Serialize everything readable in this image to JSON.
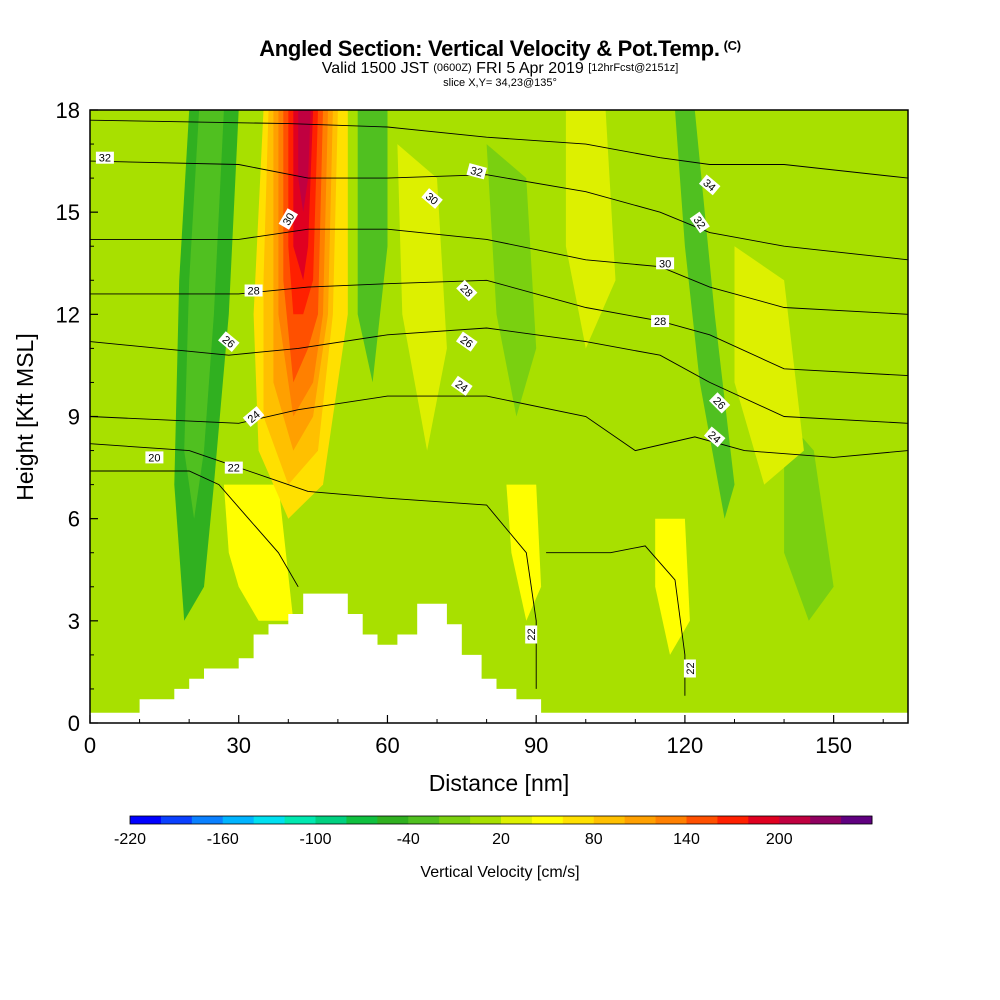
{
  "header": {
    "title": "Angled Section: Vertical Velocity & Pot.Temp.",
    "title_unit": "(C)",
    "valid_main": "Valid 1500 JST",
    "valid_z": "(0600Z)",
    "valid_date": "FRI 5 Apr 2019",
    "forecast": "[12hrFcst@2151z]",
    "slice": "slice X,Y= 34,23@135°"
  },
  "chart_data": {
    "type": "heatmap",
    "title": "Angled Section: Vertical Velocity & Pot.Temp. (C)",
    "xlabel": "Distance [nm]",
    "ylabel": "Height [Kft MSL]",
    "xlim": [
      0,
      165
    ],
    "ylim": [
      0,
      18
    ],
    "x_ticks": [
      0,
      30,
      60,
      90,
      120,
      150
    ],
    "y_ticks": [
      0,
      3,
      6,
      9,
      12,
      15,
      18
    ],
    "colorbar": {
      "label": "Vertical Velocity [cm/s]",
      "ticks": [
        -220,
        -160,
        -100,
        -40,
        20,
        80,
        140,
        200
      ],
      "levels": [
        -220,
        -200,
        -180,
        -160,
        -140,
        -120,
        -100,
        -80,
        -60,
        -40,
        -20,
        0,
        20,
        40,
        60,
        80,
        100,
        120,
        140,
        160,
        180,
        200,
        220,
        240
      ],
      "colors": [
        "#0000ff",
        "#0a40ff",
        "#0a80ff",
        "#00b4ff",
        "#00e0f0",
        "#00e8b0",
        "#00d080",
        "#10c040",
        "#30b020",
        "#50c020",
        "#7ad010",
        "#a8e000",
        "#ddf000",
        "#ffff00",
        "#ffe000",
        "#ffc000",
        "#ffa000",
        "#ff8000",
        "#ff5000",
        "#ff2000",
        "#e00020",
        "#c00040",
        "#900060",
        "#600080"
      ]
    },
    "terrain": [
      [
        0,
        0.3
      ],
      [
        10,
        0.3
      ],
      [
        10,
        0.7
      ],
      [
        17,
        0.7
      ],
      [
        17,
        1.0
      ],
      [
        20,
        1.0
      ],
      [
        20,
        1.3
      ],
      [
        23,
        1.3
      ],
      [
        23,
        1.6
      ],
      [
        30,
        1.6
      ],
      [
        30,
        1.9
      ],
      [
        33,
        1.9
      ],
      [
        33,
        2.6
      ],
      [
        36,
        2.6
      ],
      [
        36,
        2.9
      ],
      [
        40,
        2.9
      ],
      [
        40,
        3.2
      ],
      [
        43,
        3.2
      ],
      [
        43,
        3.8
      ],
      [
        52,
        3.8
      ],
      [
        52,
        3.2
      ],
      [
        55,
        3.2
      ],
      [
        55,
        2.6
      ],
      [
        58,
        2.6
      ],
      [
        58,
        2.3
      ],
      [
        62,
        2.3
      ],
      [
        62,
        2.6
      ],
      [
        66,
        2.6
      ],
      [
        66,
        3.5
      ],
      [
        72,
        3.5
      ],
      [
        72,
        2.9
      ],
      [
        75,
        2.9
      ],
      [
        75,
        2.0
      ],
      [
        79,
        2.0
      ],
      [
        79,
        1.3
      ],
      [
        82,
        1.3
      ],
      [
        82,
        1.0
      ],
      [
        86,
        1.0
      ],
      [
        86,
        0.7
      ],
      [
        91,
        0.7
      ],
      [
        91,
        0.3
      ],
      [
        165,
        0.3
      ]
    ],
    "bands": [
      {
        "value": -60,
        "points": [
          [
            20,
            18
          ],
          [
            30,
            18
          ],
          [
            28,
            12
          ],
          [
            25,
            7
          ],
          [
            23,
            4
          ],
          [
            19,
            3
          ],
          [
            17,
            7
          ],
          [
            18,
            13
          ]
        ]
      },
      {
        "value": -40,
        "points": [
          [
            22,
            18
          ],
          [
            27,
            18
          ],
          [
            25,
            12
          ],
          [
            23,
            8
          ],
          [
            21,
            6
          ],
          [
            19,
            8
          ],
          [
            20,
            13
          ]
        ]
      },
      {
        "value": -40,
        "points": [
          [
            54,
            18
          ],
          [
            60,
            18
          ],
          [
            60,
            14
          ],
          [
            57,
            10
          ],
          [
            54,
            12
          ]
        ]
      },
      {
        "value": -20,
        "points": [
          [
            80,
            17
          ],
          [
            88,
            16
          ],
          [
            90,
            11
          ],
          [
            86,
            9
          ],
          [
            82,
            12
          ]
        ]
      },
      {
        "value": -40,
        "points": [
          [
            118,
            18
          ],
          [
            122,
            18
          ],
          [
            126,
            12
          ],
          [
            130,
            7
          ],
          [
            128,
            6
          ],
          [
            123,
            10
          ],
          [
            120,
            14
          ]
        ]
      },
      {
        "value": -20,
        "points": [
          [
            140,
            9
          ],
          [
            146,
            8
          ],
          [
            150,
            4
          ],
          [
            145,
            3
          ],
          [
            140,
            5
          ]
        ]
      },
      {
        "value": 20,
        "points": [
          [
            62,
            17
          ],
          [
            70,
            16
          ],
          [
            72,
            11
          ],
          [
            68,
            8
          ],
          [
            63,
            12
          ]
        ]
      },
      {
        "value": 20,
        "points": [
          [
            96,
            18
          ],
          [
            104,
            18
          ],
          [
            106,
            13
          ],
          [
            100,
            11
          ],
          [
            96,
            14
          ]
        ]
      },
      {
        "value": 20,
        "points": [
          [
            130,
            14
          ],
          [
            140,
            13
          ],
          [
            144,
            8
          ],
          [
            136,
            7
          ],
          [
            130,
            10
          ]
        ]
      },
      {
        "value": 40,
        "points": [
          [
            84,
            7
          ],
          [
            90,
            7
          ],
          [
            91,
            4
          ],
          [
            88,
            3
          ],
          [
            85,
            5
          ]
        ]
      },
      {
        "value": 40,
        "points": [
          [
            114,
            6
          ],
          [
            120,
            6
          ],
          [
            121,
            3
          ],
          [
            117,
            2
          ],
          [
            114,
            4
          ]
        ]
      },
      {
        "value": 40,
        "points": [
          [
            27,
            7
          ],
          [
            38,
            7
          ],
          [
            41,
            3
          ],
          [
            34,
            3
          ],
          [
            30,
            4
          ],
          [
            28,
            5
          ]
        ]
      },
      {
        "value": 60,
        "points": [
          [
            35,
            18
          ],
          [
            52,
            18
          ],
          [
            52,
            12
          ],
          [
            47,
            7
          ],
          [
            40,
            6
          ],
          [
            34,
            8
          ],
          [
            33,
            12
          ]
        ]
      },
      {
        "value": 80,
        "points": [
          [
            36,
            18
          ],
          [
            50,
            18
          ],
          [
            49,
            12
          ],
          [
            46,
            8
          ],
          [
            40,
            7
          ],
          [
            35,
            9
          ],
          [
            35,
            13
          ]
        ]
      },
      {
        "value": 100,
        "points": [
          [
            37,
            18
          ],
          [
            49,
            18
          ],
          [
            48,
            12
          ],
          [
            45,
            9
          ],
          [
            41,
            8
          ],
          [
            37,
            10
          ],
          [
            37,
            13
          ]
        ]
      },
      {
        "value": 120,
        "points": [
          [
            38,
            18
          ],
          [
            48,
            18
          ],
          [
            47,
            12
          ],
          [
            45,
            10
          ],
          [
            41,
            9
          ],
          [
            38,
            12
          ]
        ]
      },
      {
        "value": 140,
        "points": [
          [
            39,
            18
          ],
          [
            47,
            18
          ],
          [
            46,
            12
          ],
          [
            44,
            11
          ],
          [
            41,
            10
          ],
          [
            39,
            13
          ]
        ]
      },
      {
        "value": 160,
        "points": [
          [
            40,
            18
          ],
          [
            46,
            18
          ],
          [
            45,
            13
          ],
          [
            43,
            12
          ],
          [
            41,
            12
          ],
          [
            40,
            14
          ]
        ]
      },
      {
        "value": 180,
        "points": [
          [
            41,
            18
          ],
          [
            45,
            18
          ],
          [
            44,
            14
          ],
          [
            43,
            13
          ],
          [
            41,
            14
          ]
        ]
      },
      {
        "value": 200,
        "points": [
          [
            42,
            18
          ],
          [
            44.5,
            18
          ],
          [
            44,
            16
          ],
          [
            43,
            15
          ],
          [
            42,
            16
          ]
        ]
      }
    ],
    "isentropes": [
      {
        "label": "20",
        "points": [
          [
            0,
            7.4
          ],
          [
            20,
            7.4
          ],
          [
            26,
            7.0
          ],
          [
            32,
            6.0
          ],
          [
            38,
            5.0
          ],
          [
            42,
            4.0
          ]
        ]
      },
      {
        "label": "22",
        "points": [
          [
            0,
            8.2
          ],
          [
            20,
            8.0
          ],
          [
            28,
            7.6
          ],
          [
            36,
            7.2
          ],
          [
            44,
            6.8
          ],
          [
            60,
            6.6
          ],
          [
            80,
            6.4
          ],
          [
            88,
            5.0
          ],
          [
            90,
            3.0
          ],
          [
            90,
            1.0
          ]
        ]
      },
      {
        "label": "22",
        "points": [
          [
            92,
            5.0
          ],
          [
            105,
            5.0
          ],
          [
            112,
            5.2
          ],
          [
            118,
            4.2
          ],
          [
            120,
            2.0
          ],
          [
            120,
            0.8
          ]
        ]
      },
      {
        "label": "24",
        "points": [
          [
            0,
            9.0
          ],
          [
            30,
            8.8
          ],
          [
            42,
            9.2
          ],
          [
            60,
            9.6
          ],
          [
            80,
            9.6
          ],
          [
            100,
            9.0
          ],
          [
            110,
            8.0
          ],
          [
            122,
            8.4
          ],
          [
            132,
            8.0
          ],
          [
            150,
            7.8
          ],
          [
            165,
            8.0
          ]
        ]
      },
      {
        "label": "26",
        "points": [
          [
            0,
            11.2
          ],
          [
            28,
            10.8
          ],
          [
            42,
            11.0
          ],
          [
            60,
            11.4
          ],
          [
            80,
            11.6
          ],
          [
            100,
            11.2
          ],
          [
            115,
            10.8
          ],
          [
            125,
            10.0
          ],
          [
            140,
            9.0
          ],
          [
            165,
            8.8
          ]
        ]
      },
      {
        "label": "28",
        "points": [
          [
            0,
            12.6
          ],
          [
            30,
            12.6
          ],
          [
            44,
            12.8
          ],
          [
            60,
            12.9
          ],
          [
            80,
            13.0
          ],
          [
            100,
            12.2
          ],
          [
            115,
            11.8
          ],
          [
            125,
            11.4
          ],
          [
            140,
            10.4
          ],
          [
            165,
            10.2
          ]
        ]
      },
      {
        "label": "30",
        "points": [
          [
            0,
            14.2
          ],
          [
            30,
            14.2
          ],
          [
            44,
            14.5
          ],
          [
            60,
            14.5
          ],
          [
            80,
            14.2
          ],
          [
            100,
            13.6
          ],
          [
            115,
            13.4
          ],
          [
            125,
            12.8
          ],
          [
            140,
            12.2
          ],
          [
            165,
            12.0
          ]
        ]
      },
      {
        "label": "32",
        "points": [
          [
            0,
            16.5
          ],
          [
            30,
            16.4
          ],
          [
            44,
            16.0
          ],
          [
            60,
            16.0
          ],
          [
            80,
            16.1
          ],
          [
            100,
            15.6
          ],
          [
            115,
            15.0
          ],
          [
            125,
            14.4
          ],
          [
            140,
            14.0
          ],
          [
            165,
            13.6
          ]
        ]
      },
      {
        "label": "34",
        "points": [
          [
            0,
            17.7
          ],
          [
            40,
            17.6
          ],
          [
            60,
            17.5
          ],
          [
            80,
            17.2
          ],
          [
            100,
            17.0
          ],
          [
            115,
            16.6
          ],
          [
            125,
            16.4
          ],
          [
            140,
            16.4
          ],
          [
            165,
            16.0
          ]
        ]
      }
    ],
    "contour_labels": [
      {
        "text": "32",
        "x": 3,
        "y": 16.6,
        "angle": 0
      },
      {
        "text": "32",
        "x": 78,
        "y": 16.2,
        "angle": 15
      },
      {
        "text": "30",
        "x": 69,
        "y": 15.4,
        "angle": 40
      },
      {
        "text": "30",
        "x": 40,
        "y": 14.8,
        "angle": -60
      },
      {
        "text": "28",
        "x": 33,
        "y": 12.7,
        "angle": 0
      },
      {
        "text": "28",
        "x": 76,
        "y": 12.7,
        "angle": 45
      },
      {
        "text": "26",
        "x": 28,
        "y": 11.2,
        "angle": 40
      },
      {
        "text": "26",
        "x": 76,
        "y": 11.2,
        "angle": 35
      },
      {
        "text": "24",
        "x": 33,
        "y": 9.0,
        "angle": -40
      },
      {
        "text": "24",
        "x": 75,
        "y": 9.9,
        "angle": 35
      },
      {
        "text": "22",
        "x": 29,
        "y": 7.5,
        "angle": 0
      },
      {
        "text": "20",
        "x": 13,
        "y": 7.8,
        "angle": 0
      },
      {
        "text": "22",
        "x": 89,
        "y": 2.6,
        "angle": -90
      },
      {
        "text": "34",
        "x": 125,
        "y": 15.8,
        "angle": 40
      },
      {
        "text": "32",
        "x": 123,
        "y": 14.7,
        "angle": 55
      },
      {
        "text": "30",
        "x": 116,
        "y": 13.5,
        "angle": 0
      },
      {
        "text": "28",
        "x": 115,
        "y": 11.8,
        "angle": 0
      },
      {
        "text": "26",
        "x": 127,
        "y": 9.4,
        "angle": 45
      },
      {
        "text": "24",
        "x": 126,
        "y": 8.4,
        "angle": 40
      },
      {
        "text": "22",
        "x": 121,
        "y": 1.6,
        "angle": -90
      }
    ]
  }
}
